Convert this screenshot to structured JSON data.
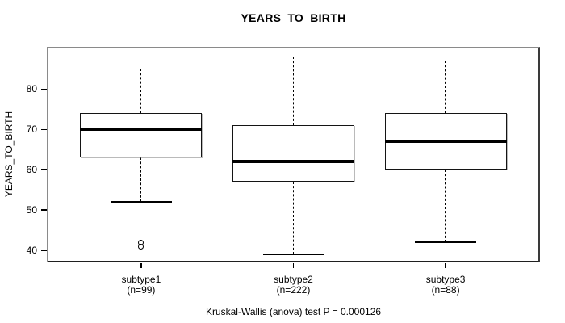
{
  "chart_data": {
    "type": "boxplot",
    "title": "YEARS_TO_BIRTH",
    "ylabel": "YEARS_TO_BIRTH",
    "xlabel": "",
    "yticks": [
      40,
      50,
      60,
      70,
      80
    ],
    "ylim": [
      37,
      90.5
    ],
    "grid": false,
    "legend": false,
    "annotation": "Kruskal-Wallis (anova) test P = 0.000126",
    "groups": [
      {
        "label": "subtype1",
        "n_label": "(n=99)",
        "whisker_low": 52,
        "q1": 63,
        "median": 70,
        "q3": 74,
        "whisker_high": 85,
        "outliers": [
          42,
          41
        ]
      },
      {
        "label": "subtype2",
        "n_label": "(n=222)",
        "whisker_low": 39,
        "q1": 57,
        "median": 62,
        "q3": 71,
        "whisker_high": 88,
        "outliers": []
      },
      {
        "label": "subtype3",
        "n_label": "(n=88)",
        "whisker_low": 42,
        "q1": 60,
        "median": 67,
        "q3": 74,
        "whisker_high": 87,
        "outliers": []
      }
    ],
    "colors": {
      "line": "#000000",
      "box_fill": "#ffffff",
      "frame": "#8a8a8a",
      "text": "#000000"
    }
  }
}
